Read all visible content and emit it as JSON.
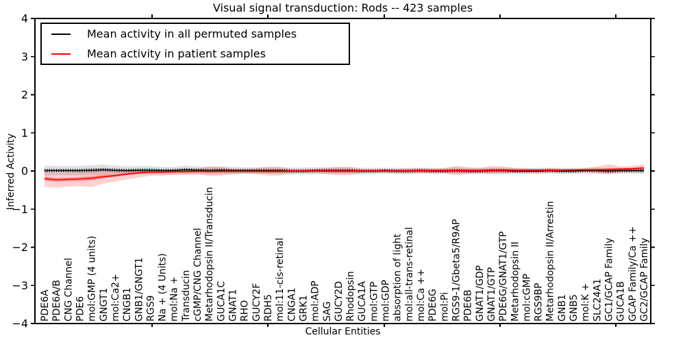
{
  "figure_title": "Visual signal transduction: Rods -- 423 samples",
  "chart_data": {
    "type": "line",
    "title": "Visual signal transduction: Rods -- 423 samples",
    "xlabel": "Cellular Entities",
    "ylabel": "Inferred Activity",
    "ylim": [
      -4,
      4
    ],
    "yticks": [
      4,
      3,
      2,
      1,
      0,
      -1,
      -2,
      -3,
      -4
    ],
    "ytick_labels": [
      "4",
      "3",
      "2",
      "1",
      "0",
      "−1",
      "−2",
      "−3",
      "−4"
    ],
    "grid": false,
    "legend_position": "upper left",
    "categories": [
      "PDE6A",
      "PDE6A/B",
      "CNG Channel",
      "PDE6",
      "mol:GMP (4 units)",
      "GNGT1",
      "mol:Ca2+",
      "CNGB1",
      "GNB1/GNGT1",
      "RGS9",
      "Na + (4 Units)",
      "mol:Na +",
      "Transducin",
      "cGMP/CNG Channel",
      "Metarhodopsin II/Transducin",
      "GUCA1C",
      "GNAT1",
      "RHO",
      "GUCY2F",
      "RDH5",
      "mol:11-cis-retinal",
      "CNGA1",
      "GRK1",
      "mol:ADP",
      "SAG",
      "GUCY2D",
      "Rhodopsin",
      "GUCA1A",
      "mol:GTP",
      "mol:GDP",
      "absorption of light",
      "mol:all-trans-retinal",
      "mol:Ca ++",
      "PDE6G",
      "mol:Pi",
      "RGS9-1/Gbeta5/R9AP",
      "PDE6B",
      "GNAT1/GDP",
      "GNAT1/GTP",
      "PDE6G/GNAT1/GTP",
      "Metarhodopsin II",
      "mol:cGMP",
      "RGS9BP",
      "Metarhodopsin II/Arrestin",
      "GNB1",
      "GNB5",
      "mol:K +",
      "SLC24A1",
      "GC1/GCAP Family",
      "GUCA1B",
      "GCAP Family/Ca ++",
      "GC2/GCAP Family"
    ],
    "series": [
      {
        "name": "Mean activity in all permuted samples",
        "color": "#000000",
        "band_color": "#000000",
        "values": [
          0.01,
          0.01,
          0.01,
          0.01,
          0.02,
          0.03,
          0.02,
          0.01,
          0.02,
          0.02,
          0.01,
          0.01,
          0.03,
          0.02,
          0.01,
          0.02,
          0.01,
          0.01,
          0.01,
          0.01,
          0.01,
          0.0,
          0.0,
          0.01,
          0.01,
          0.01,
          0.01,
          0.0,
          0.0,
          0.01,
          0.0,
          0.0,
          0.01,
          0.0,
          0.0,
          0.01,
          0.0,
          0.0,
          0.01,
          0.01,
          0.0,
          0.0,
          0.0,
          0.01,
          0.0,
          0.0,
          0.01,
          0.01,
          0.0,
          0.01,
          0.01,
          0.01
        ],
        "band_halfwidth": [
          0.13,
          0.12,
          0.12,
          0.12,
          0.13,
          0.14,
          0.12,
          0.11,
          0.11,
          0.11,
          0.1,
          0.1,
          0.11,
          0.1,
          0.1,
          0.1,
          0.1,
          0.09,
          0.09,
          0.09,
          0.09,
          0.09,
          0.09,
          0.09,
          0.09,
          0.09,
          0.09,
          0.09,
          0.08,
          0.08,
          0.08,
          0.08,
          0.08,
          0.08,
          0.08,
          0.09,
          0.08,
          0.08,
          0.08,
          0.08,
          0.08,
          0.08,
          0.08,
          0.08,
          0.08,
          0.08,
          0.08,
          0.08,
          0.08,
          0.08,
          0.08,
          0.09
        ]
      },
      {
        "name": "Mean activity in patient samples",
        "color": "#ff0000",
        "band_color": "#ff0000",
        "values": [
          -0.2,
          -0.23,
          -0.22,
          -0.21,
          -0.19,
          -0.15,
          -0.12,
          -0.08,
          -0.05,
          -0.03,
          -0.03,
          -0.02,
          -0.02,
          -0.01,
          -0.01,
          -0.01,
          -0.01,
          -0.01,
          -0.01,
          -0.01,
          -0.01,
          0.0,
          0.0,
          0.0,
          0.0,
          0.0,
          0.0,
          0.0,
          0.0,
          0.0,
          0.0,
          0.0,
          0.01,
          0.01,
          0.01,
          0.01,
          0.01,
          0.01,
          0.02,
          0.02,
          0.02,
          0.02,
          0.02,
          0.02,
          0.02,
          0.03,
          0.03,
          0.03,
          0.04,
          0.05,
          0.06,
          0.08
        ],
        "band_upper": [
          -0.04,
          -0.06,
          -0.05,
          -0.04,
          0.0,
          -0.02,
          -0.01,
          0.01,
          0.02,
          0.04,
          0.03,
          0.04,
          0.05,
          0.06,
          0.12,
          0.11,
          0.06,
          0.05,
          0.07,
          0.11,
          0.11,
          0.05,
          0.04,
          0.05,
          0.08,
          0.11,
          0.11,
          0.05,
          0.04,
          0.05,
          0.05,
          0.07,
          0.07,
          0.06,
          0.07,
          0.14,
          0.1,
          0.08,
          0.13,
          0.12,
          0.08,
          0.07,
          0.06,
          0.07,
          0.06,
          0.06,
          0.07,
          0.12,
          0.18,
          0.12,
          0.14,
          0.17
        ],
        "band_lower": [
          -0.42,
          -0.44,
          -0.41,
          -0.4,
          -0.42,
          -0.33,
          -0.28,
          -0.22,
          -0.17,
          -0.13,
          -0.12,
          -0.1,
          -0.1,
          -0.09,
          -0.13,
          -0.12,
          -0.08,
          -0.07,
          -0.08,
          -0.12,
          -0.12,
          -0.06,
          -0.05,
          -0.06,
          -0.08,
          -0.11,
          -0.11,
          -0.05,
          -0.04,
          -0.05,
          -0.05,
          -0.06,
          -0.06,
          -0.05,
          -0.05,
          -0.1,
          -0.08,
          -0.06,
          -0.08,
          -0.08,
          -0.05,
          -0.04,
          -0.03,
          -0.04,
          -0.03,
          -0.02,
          -0.02,
          -0.06,
          -0.08,
          -0.04,
          -0.02,
          -0.03
        ]
      }
    ]
  }
}
